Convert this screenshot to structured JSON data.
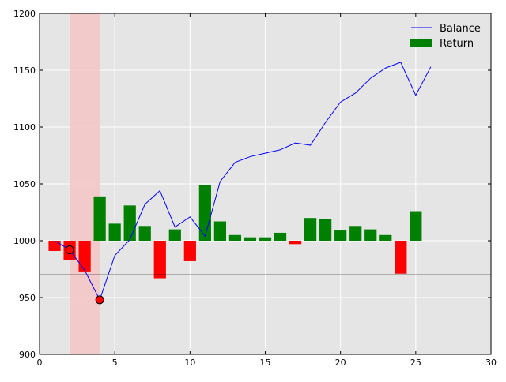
{
  "chart_data": {
    "type": "bar",
    "xlim": [
      0,
      30
    ],
    "ylim": [
      900,
      1200
    ],
    "grid": true,
    "x_ticks": [
      "0",
      "5",
      "10",
      "15",
      "20",
      "25",
      "30"
    ],
    "y_ticks": [
      "900",
      "950",
      "1000",
      "1050",
      "1100",
      "1150",
      "1200"
    ],
    "legend": {
      "placement": "top-right",
      "entries": [
        "Balance",
        "Return"
      ]
    },
    "colors": {
      "plot_background": "#e5e5e5",
      "grid": "#ffffff",
      "balance_line": "#0000ff",
      "positive_bar": "#008000",
      "negative_bar": "#ff0000",
      "drawdown_span": "#f4c6c6",
      "marker_fill": "#ff0000",
      "reference_line": "#000000"
    },
    "series": [
      {
        "name": "Balance",
        "type": "line",
        "x": [
          1,
          2,
          3,
          4,
          5,
          6,
          7,
          8,
          9,
          10,
          11,
          12,
          13,
          14,
          15,
          16,
          17,
          18,
          19,
          20,
          21,
          22,
          23,
          24,
          25,
          26
        ],
        "values": [
          1000,
          992,
          974,
          948,
          987,
          1001,
          1032,
          1044,
          1012,
          1021,
          1004,
          1052,
          1069,
          1074,
          1077,
          1080,
          1086,
          1084,
          1104,
          1122,
          1130,
          1143,
          1152,
          1157,
          1128,
          1153
        ]
      },
      {
        "name": "Return",
        "type": "bar",
        "x": [
          1,
          2,
          3,
          4,
          5,
          6,
          7,
          8,
          9,
          10,
          11,
          12,
          13,
          14,
          15,
          16,
          17,
          18,
          19,
          20,
          21,
          22,
          23,
          24,
          25
        ],
        "values": [
          -9,
          -17,
          -27,
          39,
          15,
          31,
          13,
          -33,
          10,
          -18,
          49,
          17,
          5,
          3,
          3,
          7,
          -3,
          20,
          19,
          9,
          13,
          10,
          5,
          -29,
          26
        ]
      }
    ],
    "drawdown_span": [
      2,
      4
    ],
    "markers": [
      {
        "x": 2,
        "y": 992
      },
      {
        "x": 4,
        "y": 948
      }
    ],
    "reference_line": 970,
    "baseline": 1000
  }
}
